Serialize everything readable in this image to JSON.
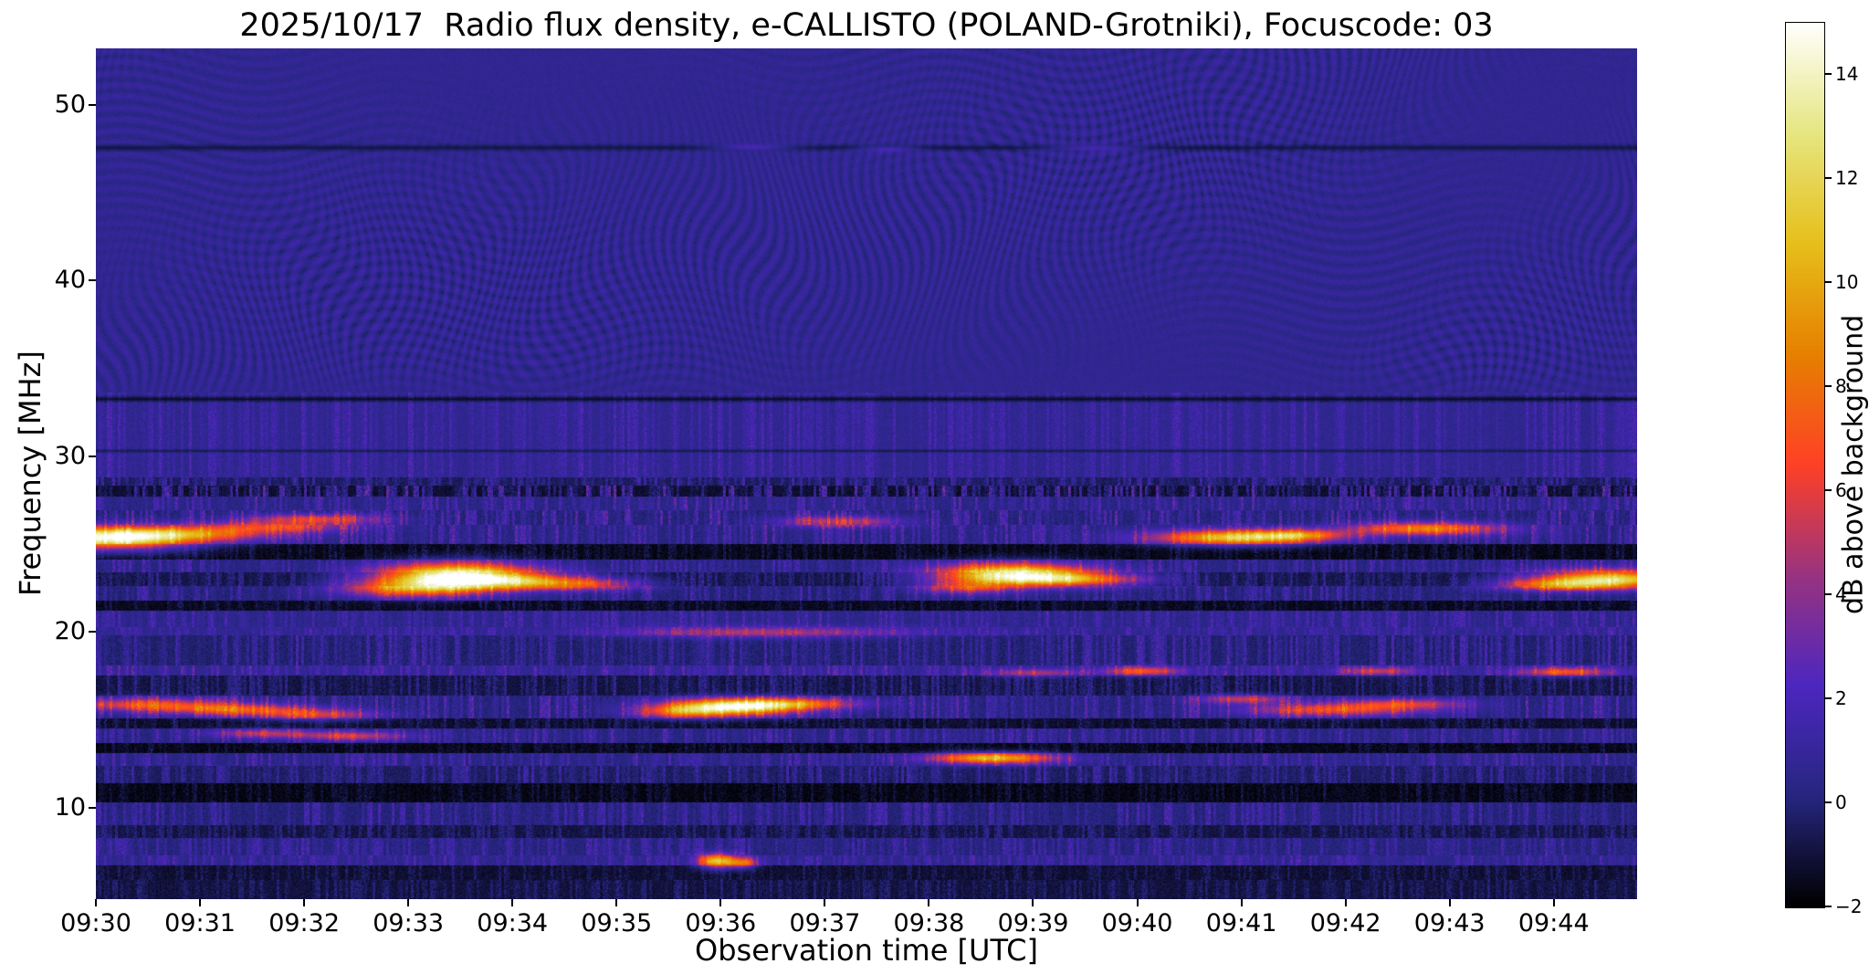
{
  "chart_data": {
    "type": "heatmap",
    "title": "2025/10/17  Radio flux density, e-CALLISTO (POLAND-Grotniki), Focuscode: 03",
    "xlabel": "Observation time [UTC]",
    "ylabel": "Frequency [MHz]",
    "grid": false,
    "x_ticks": [
      "09:30",
      "09:31",
      "09:32",
      "09:33",
      "09:34",
      "09:35",
      "09:36",
      "09:37",
      "09:38",
      "09:39",
      "09:40",
      "09:41",
      "09:42",
      "09:43",
      "09:44"
    ],
    "x_range_minutes": [
      0,
      14.8
    ],
    "y_ticks": [
      50,
      40,
      30,
      20,
      10
    ],
    "y_range_mhz": [
      4.8,
      53.2
    ],
    "colorbar": {
      "label": "dB above background",
      "min": -2,
      "max": 15,
      "tick_values": [
        14,
        12,
        10,
        8,
        6,
        4,
        2,
        0,
        -2
      ],
      "tick_labels": [
        "14",
        "12",
        "10",
        "8",
        "6",
        "4",
        "2",
        "0",
        "−2"
      ],
      "colormap": "CMRmap",
      "stops": [
        {
          "p": 0.0,
          "c": [
            0,
            0,
            0
          ]
        },
        {
          "p": 0.125,
          "c": [
            38,
            38,
            128
          ]
        },
        {
          "p": 0.25,
          "c": [
            77,
            38,
            191
          ]
        },
        {
          "p": 0.375,
          "c": [
            153,
            51,
            128
          ]
        },
        {
          "p": 0.5,
          "c": [
            255,
            64,
            38
          ]
        },
        {
          "p": 0.625,
          "c": [
            230,
            128,
            0
          ]
        },
        {
          "p": 0.75,
          "c": [
            230,
            191,
            26
          ]
        },
        {
          "p": 0.875,
          "c": [
            230,
            230,
            128
          ]
        },
        {
          "p": 1.0,
          "c": [
            255,
            255,
            255
          ]
        }
      ]
    },
    "background": {
      "base": 0.8,
      "noise": 0.7,
      "ripple_region_min_mhz": 33.6
    },
    "dark_lines": [
      {
        "f": 33.25,
        "w": 0.25,
        "level": -1.7
      },
      {
        "f": 47.55,
        "w": 0.3,
        "level": -1.0
      },
      {
        "f": 30.3,
        "w": 0.15,
        "level": -0.9
      }
    ],
    "bands": [
      [
        28.8,
        33.6,
        0.6,
        1.5
      ],
      [
        28.3,
        28.8,
        -0.5,
        2.2
      ],
      [
        27.7,
        28.3,
        -1.2,
        4.0
      ],
      [
        26.9,
        27.7,
        0.3,
        2.2
      ],
      [
        26.1,
        26.9,
        0.0,
        2.6
      ],
      [
        25.0,
        26.1,
        0.2,
        2.4
      ],
      [
        24.1,
        25.0,
        -1.6,
        1.0
      ],
      [
        23.4,
        24.1,
        0.2,
        2.0
      ],
      [
        22.6,
        23.4,
        -0.8,
        1.8
      ],
      [
        21.8,
        22.6,
        0.0,
        2.0
      ],
      [
        21.2,
        21.8,
        -1.5,
        1.0
      ],
      [
        20.3,
        21.2,
        0.4,
        1.8
      ],
      [
        19.8,
        20.3,
        0.6,
        1.6
      ],
      [
        18.1,
        19.8,
        -0.2,
        2.2
      ],
      [
        17.5,
        18.1,
        0.7,
        2.2
      ],
      [
        16.4,
        17.5,
        -0.9,
        1.8
      ],
      [
        15.1,
        16.4,
        0.1,
        2.6
      ],
      [
        14.5,
        15.1,
        -1.3,
        1.2
      ],
      [
        13.7,
        14.5,
        0.2,
        2.2
      ],
      [
        13.1,
        13.7,
        -1.6,
        0.9
      ],
      [
        12.4,
        13.1,
        0.3,
        2.0
      ],
      [
        11.4,
        12.4,
        -0.4,
        2.0
      ],
      [
        10.3,
        11.4,
        -1.7,
        0.9
      ],
      [
        9.0,
        10.3,
        0.0,
        2.0
      ],
      [
        8.3,
        9.0,
        -0.9,
        1.5
      ],
      [
        7.3,
        8.3,
        0.1,
        1.9
      ],
      [
        6.7,
        7.3,
        0.5,
        1.8
      ],
      [
        5.9,
        6.7,
        -1.2,
        1.0
      ],
      [
        4.8,
        5.9,
        -1.0,
        1.2
      ]
    ],
    "features": [
      [
        0.15,
        25.35,
        0.55,
        0.45,
        13
      ],
      [
        0.9,
        25.6,
        0.6,
        0.28,
        6
      ],
      [
        1.7,
        26.0,
        0.5,
        0.22,
        5
      ],
      [
        2.1,
        26.45,
        0.45,
        0.2,
        5.5
      ],
      [
        3.0,
        22.5,
        0.45,
        0.35,
        7
      ],
      [
        3.45,
        23.2,
        0.5,
        0.5,
        14.5
      ],
      [
        4.1,
        22.9,
        0.55,
        0.3,
        7
      ],
      [
        4.7,
        22.7,
        0.4,
        0.22,
        4
      ],
      [
        5.6,
        15.45,
        0.3,
        0.25,
        5
      ],
      [
        6.1,
        15.75,
        0.45,
        0.32,
        13
      ],
      [
        6.7,
        15.95,
        0.45,
        0.22,
        6
      ],
      [
        6.4,
        20.0,
        0.9,
        0.22,
        4
      ],
      [
        8.35,
        22.55,
        0.3,
        0.25,
        5
      ],
      [
        8.8,
        23.3,
        0.5,
        0.42,
        13.5
      ],
      [
        9.4,
        23.0,
        0.5,
        0.26,
        7
      ],
      [
        8.6,
        12.85,
        0.4,
        0.22,
        10
      ],
      [
        10.95,
        25.4,
        0.55,
        0.3,
        11
      ],
      [
        11.55,
        25.55,
        0.3,
        0.2,
        5
      ],
      [
        12.75,
        25.9,
        0.5,
        0.26,
        8
      ],
      [
        14.05,
        22.7,
        0.4,
        0.22,
        7
      ],
      [
        14.55,
        23.05,
        0.5,
        0.35,
        12.5
      ],
      [
        0.5,
        15.9,
        0.55,
        0.25,
        6
      ],
      [
        1.35,
        15.6,
        0.5,
        0.22,
        6
      ],
      [
        2.1,
        15.3,
        0.4,
        0.22,
        5
      ],
      [
        1.6,
        14.25,
        0.35,
        0.18,
        4.5
      ],
      [
        2.45,
        14.1,
        0.35,
        0.18,
        5
      ],
      [
        10.05,
        17.8,
        0.25,
        0.18,
        6
      ],
      [
        11.0,
        16.2,
        0.3,
        0.18,
        5
      ],
      [
        11.9,
        15.6,
        0.6,
        0.25,
        6
      ],
      [
        12.55,
        15.95,
        0.4,
        0.2,
        5
      ],
      [
        5.95,
        7.0,
        0.12,
        0.28,
        10
      ],
      [
        6.2,
        6.9,
        0.1,
        0.22,
        7
      ],
      [
        14.1,
        17.75,
        0.3,
        0.18,
        6
      ],
      [
        7.15,
        26.3,
        0.4,
        0.22,
        5
      ],
      [
        9.0,
        17.7,
        0.3,
        0.16,
        4
      ],
      [
        12.3,
        17.8,
        0.25,
        0.16,
        4.5
      ],
      [
        6.3,
        47.6,
        0.25,
        0.12,
        2.5
      ],
      [
        7.6,
        47.5,
        0.2,
        0.12,
        2.2
      ],
      [
        9.6,
        47.55,
        0.3,
        0.12,
        2.4
      ]
    ]
  }
}
